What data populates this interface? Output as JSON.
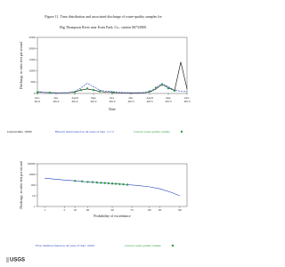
{
  "figure_title": "Figure 11.  Time distribution and associated discharge of water-quality samples for",
  "figure_subtitle": "Big Thompson River near Estes Park, Co., station 06733000.",
  "logo": "USGS",
  "chart_data": [
    {
      "type": "line",
      "ylabel": "Discharge, in cubic feet per second",
      "xlabel": "Date",
      "categories": [
        "Oct. 2011",
        null,
        null,
        "Jan. 2012",
        null,
        null,
        "April 2012",
        null,
        null,
        "July 2012",
        null,
        null,
        "Oct. 2012",
        null,
        null,
        "Jan. 2013",
        null,
        null,
        "April 2013",
        null,
        null,
        "July 2013",
        null,
        null,
        "Oct. 2013"
      ],
      "ylim": [
        0,
        2500
      ],
      "yticks": [
        0,
        500,
        1000,
        1500,
        2000,
        2500
      ],
      "series": [
        {
          "name": "Current time",
          "color": "#000000",
          "style": "line",
          "values": [
            60,
            45,
            35,
            30,
            30,
            35,
            70,
            150,
            200,
            150,
            90,
            60,
            45,
            35,
            30,
            28,
            28,
            30,
            60,
            200,
            400,
            250,
            130,
            1400,
            200
          ]
        },
        {
          "name": "Historic mean based on 42 years of data",
          "color": "#1f3fbf",
          "style": "dashed",
          "values": [
            80,
            50,
            40,
            35,
            35,
            40,
            80,
            250,
            450,
            300,
            150,
            100,
            80,
            50,
            40,
            35,
            35,
            40,
            80,
            250,
            450,
            300,
            150,
            100,
            80
          ]
        },
        {
          "name": "Current water-quality sample",
          "color": "#2e9e3e",
          "style": "marker",
          "values": [
            40,
            null,
            30,
            null,
            null,
            null,
            60,
            150,
            220,
            150,
            90,
            null,
            45,
            null,
            null,
            null,
            null,
            null,
            90,
            250,
            380,
            230,
            120,
            null,
            null
          ]
        }
      ]
    },
    {
      "type": "line",
      "ylabel": "Discharge, in cubic feet per second",
      "xlabel": "Probability of exceedance",
      "xscale": "probability",
      "yscale": "log",
      "xlim": [
        0.5,
        99.5
      ],
      "xticks": [
        1,
        5,
        10,
        20,
        50,
        75,
        90,
        95,
        99
      ],
      "ylim": [
        1,
        10000
      ],
      "yticks": [
        1,
        10,
        100,
        1000,
        10000
      ],
      "series": [
        {
          "name": "Flow duration based on 42 years of data",
          "color": "#1f3fbf",
          "style": "line",
          "x": [
            1,
            2,
            5,
            10,
            20,
            30,
            40,
            50,
            60,
            70,
            80,
            90,
            95,
            98,
            99
          ],
          "values": [
            450,
            380,
            300,
            250,
            200,
            175,
            155,
            140,
            125,
            110,
            95,
            70,
            45,
            20,
            10
          ]
        },
        {
          "name": "Current water-quality sample",
          "color": "#2e9e3e",
          "style": "marker",
          "x": [
            10,
            15,
            20,
            25,
            30,
            35,
            40,
            45,
            50,
            55,
            60,
            65,
            70
          ],
          "values": [
            250,
            225,
            200,
            190,
            175,
            165,
            155,
            148,
            140,
            132,
            125,
            118,
            110
          ]
        }
      ]
    }
  ]
}
